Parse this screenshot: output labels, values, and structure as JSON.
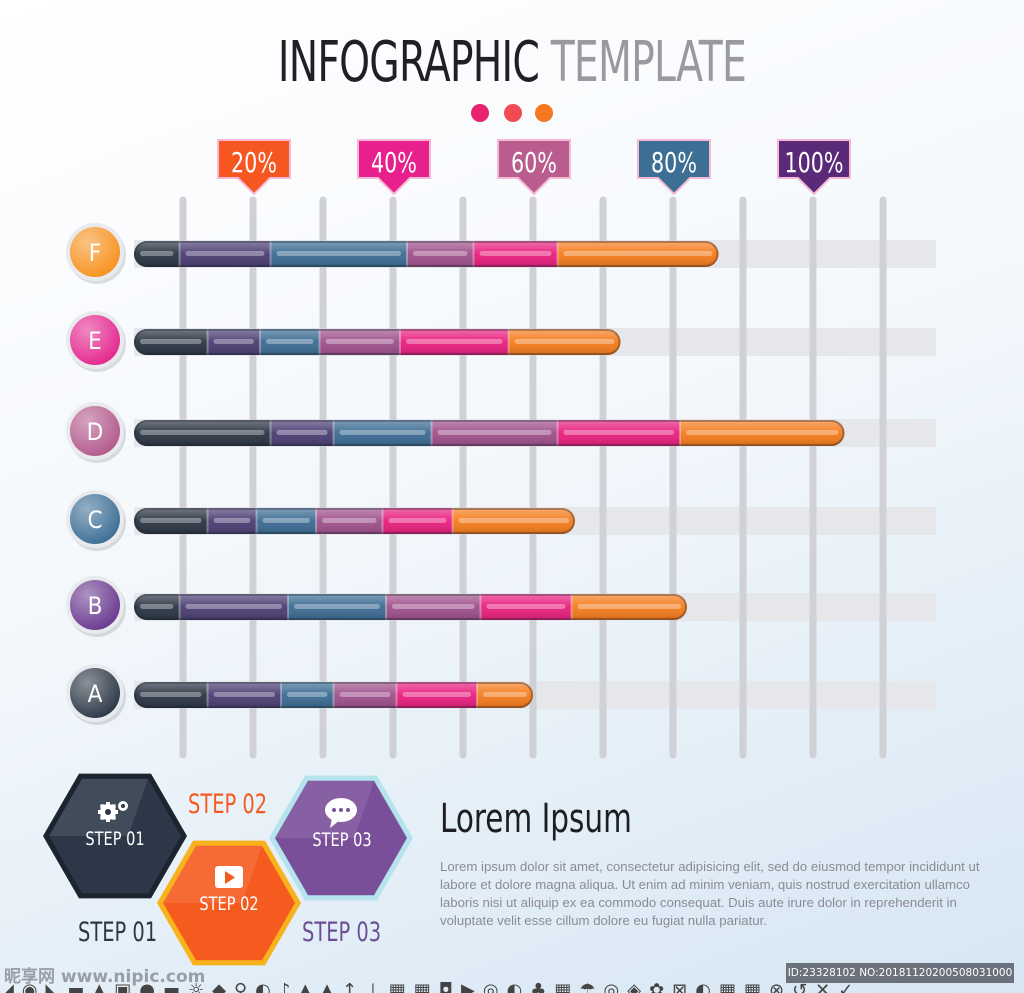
{
  "title": {
    "part1": "INFOGRAPHIC",
    "part2": "TEMPLATE"
  },
  "dots": [
    "#e8246f",
    "#f04a55",
    "#f4781e"
  ],
  "chart_data": {
    "type": "bar",
    "orientation": "horizontal",
    "stacked": true,
    "percent_markers": [
      "20%",
      "40%",
      "60%",
      "80%",
      "100%"
    ],
    "marker_colors": [
      "#f6561f",
      "#e8208e",
      "#b85d8e",
      "#3d6f95",
      "#5a2a78"
    ],
    "categories": [
      "F",
      "E",
      "D",
      "C",
      "B",
      "A"
    ],
    "category_colors": [
      "#f79220",
      "#e4288f",
      "#b35a8c",
      "#3e6f96",
      "#6a3a8f",
      "#2d3847"
    ],
    "segment_colors": [
      "#2a3442",
      "#4a3d72",
      "#3a6b92",
      "#9e4f8a",
      "#e81e7d",
      "#f57b1b"
    ],
    "rows": [
      {
        "label": "F",
        "segments": [
          6.5,
          13,
          19.5,
          9.5,
          12,
          23
        ]
      },
      {
        "label": "E",
        "segments": [
          10.5,
          7.5,
          8.5,
          11.5,
          15.5,
          16
        ]
      },
      {
        "label": "D",
        "segments": [
          19.5,
          9,
          14,
          18,
          17.5,
          23.5
        ]
      },
      {
        "label": "C",
        "segments": [
          10.5,
          7,
          8.5,
          9.5,
          10,
          17.5
        ]
      },
      {
        "label": "B",
        "segments": [
          6.5,
          15.5,
          14,
          13.5,
          13,
          16.5
        ]
      },
      {
        "label": "A",
        "segments": [
          10.5,
          10.5,
          7.5,
          9,
          11.5,
          8
        ]
      }
    ],
    "xlim": [
      0,
      106
    ],
    "grid": true
  },
  "steps": {
    "hex1": "STEP 01",
    "hex2": "STEP 02",
    "hex3": "STEP 03",
    "label1": "STEP 01",
    "label2": "STEP 02",
    "label3": "STEP 03",
    "colors": {
      "step1": "#2c3848",
      "step2": "#f55a1f",
      "step3": "#7a4f9a"
    }
  },
  "lorem": {
    "title": "Lorem Ipsum",
    "body": "Lorem ipsum dolor sit amet, consectetur adipisicing elit, sed do eiusmod tempor incididunt ut labore et dolore magna aliqua. Ut enim ad minim veniam, quis nostrud exercitation ullamco laboris nisi ut aliquip ex ea commodo consequat.  Duis aute irure dolor in reprehenderit in voluptate velit esse cillum dolore eu fugiat nulla pariatur."
  },
  "watermark": "昵享网 www.nipic.com",
  "image_id": "ID:23328102 NO:20181120200508031000",
  "icon_strip": "◢◉◣▬▲▣●▬☼◆♀◐♪▲▲↑⊥▦▦◘▶◎◐♣▦☂◎◈✿⊠◐▦▦⊗↺✕✓"
}
